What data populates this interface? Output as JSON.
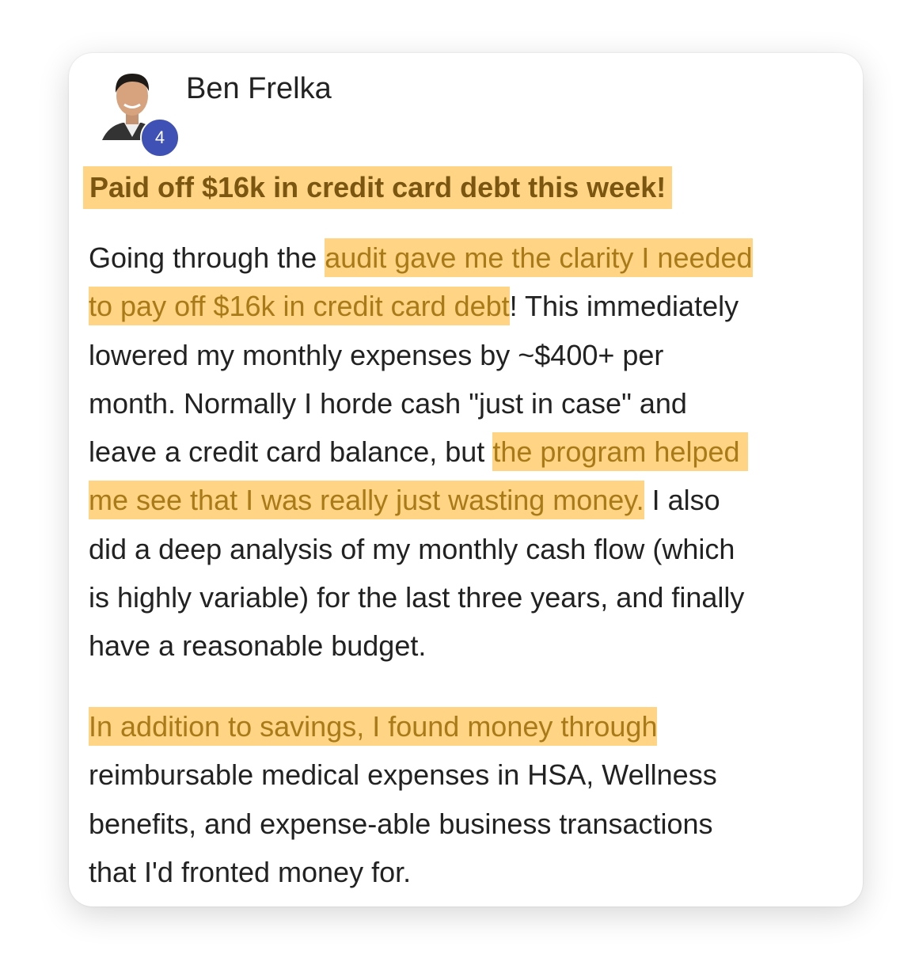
{
  "post": {
    "author": "Ben Frelka",
    "badge_count": "4",
    "title": "Paid off $16k in credit card debt this week!",
    "paragraphs": [
      [
        [
          {
            "t": "Going through the ",
            "h": false
          },
          {
            "t": "audit gave me the clarity I needed",
            "h": true
          }
        ],
        [
          {
            "t": "to pay off $16k in credit card debt",
            "h": true
          },
          {
            "t": "! This immediately",
            "h": false
          }
        ],
        [
          {
            "t": "lowered my monthly expenses by ~$400+ per",
            "h": false
          }
        ],
        [
          {
            "t": "month. Normally I horde cash \"just in case\" and",
            "h": false
          }
        ],
        [
          {
            "t": "leave a credit card balance, but ",
            "h": false
          },
          {
            "t": "the program helped ",
            "h": true
          }
        ],
        [
          {
            "t": "me see that I was really just wasting money.",
            "h": true
          },
          {
            "t": " I also",
            "h": false
          }
        ],
        [
          {
            "t": "did a deep analysis of my monthly cash flow (which",
            "h": false
          }
        ],
        [
          {
            "t": "is highly variable) for the last three years, and finally",
            "h": false
          }
        ],
        [
          {
            "t": "have a reasonable budget.",
            "h": false
          }
        ]
      ],
      [
        [
          {
            "t": "In addition to savings, I found money through",
            "h": true
          }
        ],
        [
          {
            "t": "reimbursable medical expenses in HSA, Wellness",
            "h": false
          }
        ],
        [
          {
            "t": "benefits, and expense-able business transactions",
            "h": false
          }
        ],
        [
          {
            "t": "that I'd fronted money for.",
            "h": false
          }
        ]
      ]
    ]
  },
  "colors": {
    "highlight": "#ffd485",
    "highlight_text": "#a87a18",
    "badge": "#3f51b5"
  }
}
